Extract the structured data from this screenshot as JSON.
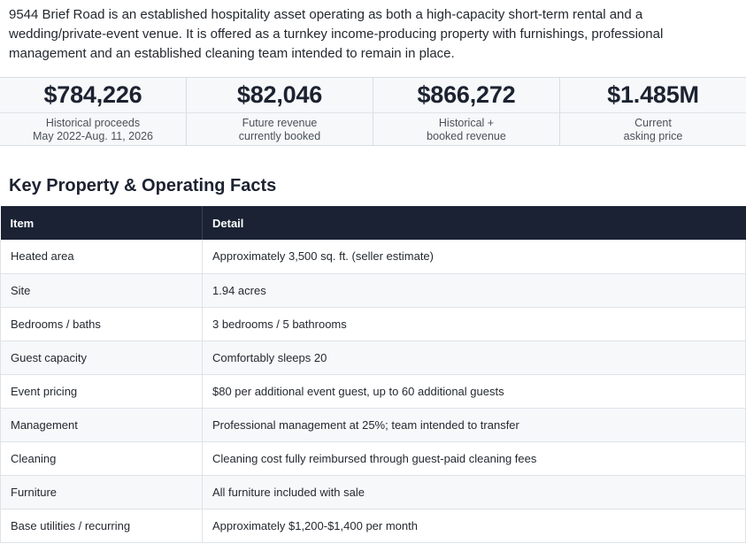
{
  "intro": "9544 Brief Road is an established hospitality asset operating as both a high-capacity short-term rental and a wedding/private-event venue. It is offered as a turnkey income-producing property with furnishings, professional management and an established cleaning team intended to remain in place.",
  "stats": [
    {
      "value": "$784,226",
      "label_line1": "Historical proceeds",
      "label_line2": "May 2022-Aug. 11, 2026"
    },
    {
      "value": "$82,046",
      "label_line1": "Future revenue",
      "label_line2": "currently booked"
    },
    {
      "value": "$866,272",
      "label_line1": "Historical +",
      "label_line2": "booked revenue"
    },
    {
      "value": "$1.485M",
      "label_line1": "Current",
      "label_line2": "asking price"
    }
  ],
  "section_title": "Key Property & Operating Facts",
  "table": {
    "headers": [
      "Item",
      "Detail"
    ],
    "rows": [
      {
        "item": "Heated area",
        "detail": "Approximately 3,500 sq. ft. (seller estimate)"
      },
      {
        "item": "Site",
        "detail": "1.94 acres"
      },
      {
        "item": "Bedrooms / baths",
        "detail": "3 bedrooms / 5 bathrooms"
      },
      {
        "item": "Guest capacity",
        "detail": "Comfortably sleeps 20"
      },
      {
        "item": "Event pricing",
        "detail": "$80 per additional event guest, up to 60 additional guests"
      },
      {
        "item": "Management",
        "detail": "Professional management at 25%; team intended to transfer"
      },
      {
        "item": "Cleaning",
        "detail": "Cleaning cost fully reimbursed through guest-paid cleaning fees"
      },
      {
        "item": "Furniture",
        "detail": "All furniture included with sale"
      },
      {
        "item": "Base utilities / recurring",
        "detail": "Approximately $1,200-$1,400 per month"
      }
    ]
  }
}
